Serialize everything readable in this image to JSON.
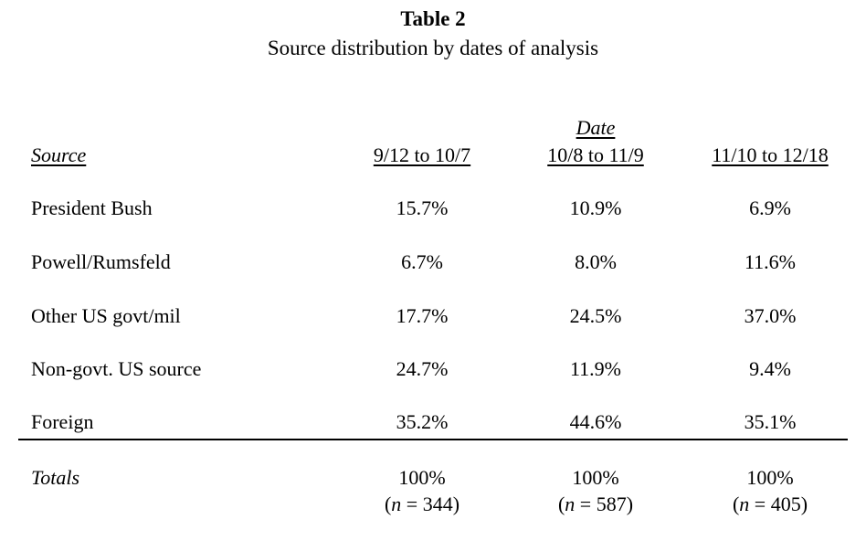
{
  "table": {
    "title": "Table 2",
    "subtitle": "Source distribution by dates of analysis",
    "group_header": "Date",
    "source_header": "Source",
    "columns": [
      "9/12 to 10/7",
      "10/8 to 11/9",
      "11/10 to 12/18"
    ],
    "rows": [
      {
        "source": "President Bush",
        "values": [
          "15.7%",
          "10.9%",
          "6.9%"
        ]
      },
      {
        "source": "Powell/Rumsfeld",
        "values": [
          "6.7%",
          "8.0%",
          "11.6%"
        ]
      },
      {
        "source": "Other US govt/mil",
        "values": [
          "17.7%",
          "24.5%",
          "37.0%"
        ]
      },
      {
        "source": "Non-govt. US source",
        "values": [
          "24.7%",
          "11.9%",
          "9.4%"
        ]
      },
      {
        "source": "Foreign",
        "values": [
          "35.2%",
          "44.6%",
          "35.1%"
        ]
      }
    ],
    "totals": {
      "label": "Totals",
      "values": [
        "100%",
        "100%",
        "100%"
      ],
      "n_symbol": "n",
      "n_values": [
        "344",
        "587",
        "405"
      ]
    }
  }
}
